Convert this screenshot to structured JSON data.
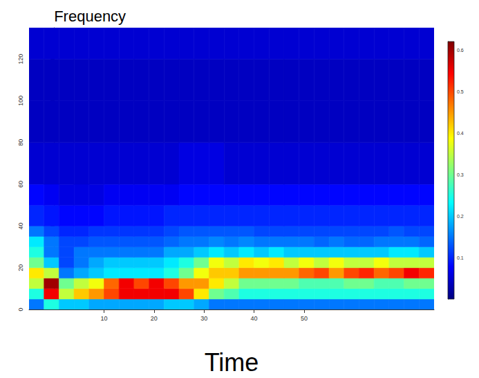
{
  "chart_data": {
    "type": "heatmap",
    "x_label": "Time",
    "y_label": "Frequency",
    "xlim": [
      -5,
      76
    ],
    "xticks": [
      10,
      20,
      30,
      40,
      50
    ],
    "ylim": [
      0,
      135
    ],
    "yticks": [
      0,
      20,
      40,
      60,
      80,
      100,
      120
    ],
    "x_edges": [
      -5,
      -2,
      1,
      4,
      7,
      10,
      13,
      16,
      19,
      22,
      25,
      28,
      31,
      34,
      37,
      40,
      43,
      46,
      49,
      52,
      55,
      58,
      61,
      64,
      67,
      70,
      73,
      76
    ],
    "y_edges": [
      0,
      5,
      10,
      15,
      20,
      25,
      30,
      35,
      40,
      50,
      60,
      80,
      100,
      120,
      135
    ],
    "cells": [
      [
        0.15,
        0.25,
        0.2,
        0.2,
        0.18,
        0.18,
        0.18,
        0.18,
        0.18,
        0.2,
        0.2,
        0.18,
        0.15,
        0.15,
        0.15,
        0.15,
        0.15,
        0.15,
        0.15,
        0.15,
        0.15,
        0.15,
        0.15,
        0.15,
        0.15,
        0.15,
        0.15
      ],
      [
        0.25,
        0.55,
        0.35,
        0.42,
        0.45,
        0.5,
        0.55,
        0.55,
        0.55,
        0.55,
        0.5,
        0.4,
        0.3,
        0.28,
        0.25,
        0.25,
        0.25,
        0.25,
        0.25,
        0.25,
        0.25,
        0.25,
        0.25,
        0.25,
        0.25,
        0.25,
        0.25
      ],
      [
        0.35,
        0.6,
        0.3,
        0.35,
        0.38,
        0.48,
        0.55,
        0.5,
        0.55,
        0.5,
        0.45,
        0.45,
        0.4,
        0.35,
        0.3,
        0.3,
        0.3,
        0.3,
        0.28,
        0.28,
        0.28,
        0.3,
        0.3,
        0.28,
        0.28,
        0.3,
        0.3
      ],
      [
        0.4,
        0.35,
        0.15,
        0.18,
        0.2,
        0.22,
        0.22,
        0.22,
        0.22,
        0.25,
        0.3,
        0.38,
        0.42,
        0.42,
        0.45,
        0.45,
        0.45,
        0.45,
        0.48,
        0.5,
        0.45,
        0.5,
        0.52,
        0.48,
        0.5,
        0.55,
        0.52
      ],
      [
        0.3,
        0.2,
        0.12,
        0.15,
        0.18,
        0.2,
        0.2,
        0.2,
        0.2,
        0.22,
        0.25,
        0.3,
        0.38,
        0.35,
        0.4,
        0.38,
        0.4,
        0.35,
        0.38,
        0.35,
        0.38,
        0.35,
        0.35,
        0.38,
        0.35,
        0.35,
        0.35
      ],
      [
        0.25,
        0.15,
        0.12,
        0.15,
        0.15,
        0.15,
        0.15,
        0.15,
        0.15,
        0.18,
        0.18,
        0.2,
        0.22,
        0.2,
        0.22,
        0.2,
        0.22,
        0.2,
        0.2,
        0.2,
        0.2,
        0.2,
        0.2,
        0.2,
        0.22,
        0.22,
        0.2
      ],
      [
        0.22,
        0.15,
        0.12,
        0.12,
        0.13,
        0.13,
        0.13,
        0.13,
        0.13,
        0.14,
        0.15,
        0.15,
        0.16,
        0.15,
        0.16,
        0.15,
        0.15,
        0.15,
        0.15,
        0.14,
        0.15,
        0.14,
        0.14,
        0.15,
        0.15,
        0.15,
        0.14
      ],
      [
        0.15,
        0.12,
        0.1,
        0.1,
        0.11,
        0.11,
        0.11,
        0.11,
        0.11,
        0.12,
        0.13,
        0.13,
        0.13,
        0.13,
        0.13,
        0.12,
        0.12,
        0.12,
        0.12,
        0.12,
        0.12,
        0.12,
        0.12,
        0.12,
        0.13,
        0.12,
        0.12
      ],
      [
        0.1,
        0.09,
        0.08,
        0.08,
        0.08,
        0.09,
        0.09,
        0.09,
        0.09,
        0.1,
        0.1,
        0.1,
        0.1,
        0.1,
        0.1,
        0.1,
        0.1,
        0.1,
        0.1,
        0.1,
        0.1,
        0.1,
        0.1,
        0.1,
        0.1,
        0.1,
        0.1
      ],
      [
        0.08,
        0.07,
        0.06,
        0.06,
        0.06,
        0.07,
        0.07,
        0.07,
        0.07,
        0.07,
        0.08,
        0.08,
        0.08,
        0.08,
        0.08,
        0.08,
        0.08,
        0.08,
        0.08,
        0.08,
        0.08,
        0.08,
        0.08,
        0.08,
        0.08,
        0.08,
        0.08
      ],
      [
        0.05,
        0.05,
        0.05,
        0.05,
        0.05,
        0.05,
        0.05,
        0.05,
        0.05,
        0.05,
        0.06,
        0.06,
        0.06,
        0.05,
        0.05,
        0.05,
        0.05,
        0.05,
        0.05,
        0.05,
        0.05,
        0.05,
        0.05,
        0.05,
        0.05,
        0.05,
        0.05
      ],
      [
        0.04,
        0.04,
        0.04,
        0.04,
        0.04,
        0.04,
        0.04,
        0.04,
        0.04,
        0.04,
        0.04,
        0.04,
        0.04,
        0.04,
        0.04,
        0.04,
        0.04,
        0.04,
        0.04,
        0.04,
        0.04,
        0.04,
        0.04,
        0.04,
        0.04,
        0.04,
        0.04
      ],
      [
        0.04,
        0.04,
        0.04,
        0.04,
        0.04,
        0.04,
        0.04,
        0.04,
        0.04,
        0.04,
        0.04,
        0.04,
        0.04,
        0.04,
        0.04,
        0.04,
        0.04,
        0.04,
        0.04,
        0.04,
        0.04,
        0.04,
        0.04,
        0.04,
        0.04,
        0.04,
        0.04
      ],
      [
        0.05,
        0.05,
        0.05,
        0.05,
        0.05,
        0.05,
        0.05,
        0.05,
        0.05,
        0.05,
        0.05,
        0.05,
        0.05,
        0.05,
        0.05,
        0.05,
        0.05,
        0.05,
        0.05,
        0.05,
        0.05,
        0.05,
        0.05,
        0.05,
        0.05,
        0.05,
        0.05
      ]
    ],
    "colorbar_range": [
      0,
      0.62
    ],
    "colorbar_ticks": [
      0.1,
      0.2,
      0.3,
      0.4,
      0.5,
      0.6
    ]
  }
}
